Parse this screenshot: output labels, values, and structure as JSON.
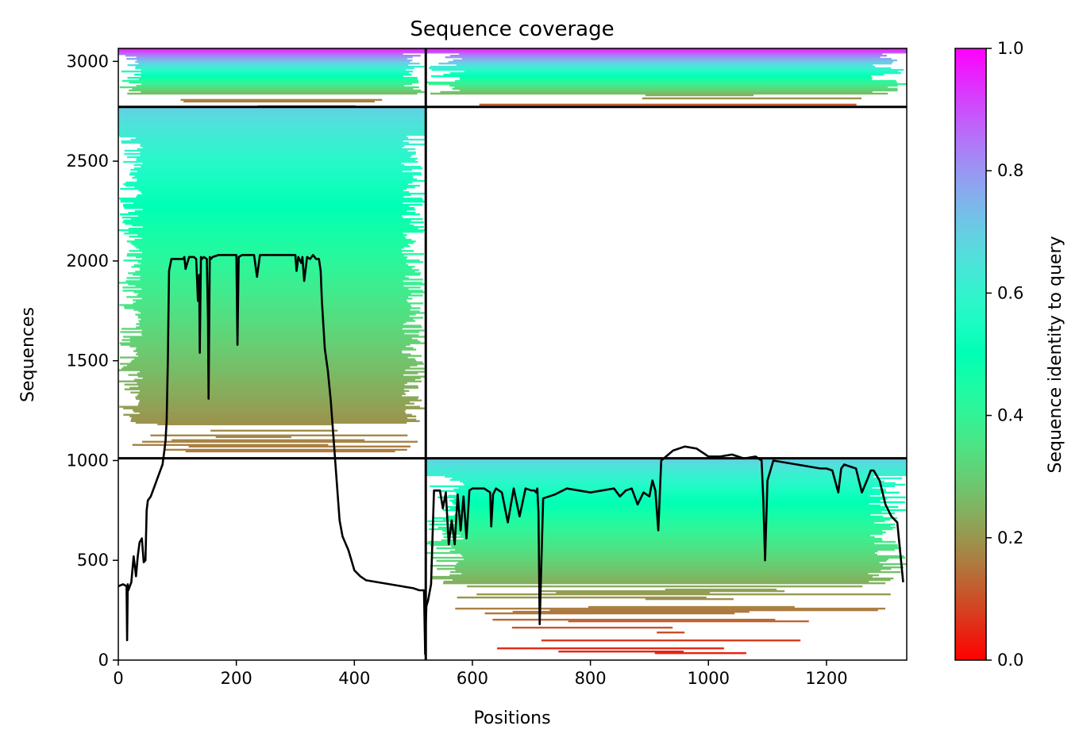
{
  "chart_data": {
    "type": "heatmap",
    "title": "Sequence coverage",
    "xlabel": "Positions",
    "ylabel": "Sequences",
    "xlim": [
      0,
      1336
    ],
    "ylim": [
      0,
      3065
    ],
    "x_ticks": [
      0,
      200,
      400,
      600,
      800,
      1000,
      1200
    ],
    "y_ticks": [
      0,
      500,
      1000,
      1500,
      2000,
      2500,
      3000
    ],
    "colorbar": {
      "label": "Sequence identity to query",
      "colormap": "rainbow_r",
      "range": [
        0,
        1
      ],
      "ticks": [
        0.0,
        0.2,
        0.4,
        0.6,
        0.8,
        1.0
      ],
      "tick_labels": [
        "0.0",
        "0.2",
        "0.4",
        "0.6",
        "0.8",
        "1.0"
      ]
    },
    "chain_boundary_x": 521,
    "block_boundaries_y": [
      1011,
      2772
    ],
    "blocks": [
      {
        "x": [
          0,
          521
        ],
        "y": [
          2772,
          3065
        ],
        "identity_top": 0.98,
        "identity_bottom": 0.08,
        "dense_fraction": 0.78
      },
      {
        "x": [
          521,
          1336
        ],
        "y": [
          2772,
          3065
        ],
        "identity_top": 0.98,
        "identity_bottom": 0.08,
        "dense_fraction": 0.78
      },
      {
        "x": [
          0,
          521
        ],
        "y": [
          1011,
          2772
        ],
        "identity_top": 0.7,
        "identity_bottom": 0.15,
        "dense_fraction": 0.9
      },
      {
        "x": [
          521,
          1336
        ],
        "y": [
          0,
          1011
        ],
        "identity_top": 0.7,
        "identity_bottom": 0.02,
        "dense_fraction": 0.62
      }
    ],
    "coverage_line": {
      "x": [
        0,
        8,
        14,
        15,
        16,
        17,
        22,
        26,
        30,
        33,
        36,
        40,
        43,
        46,
        48,
        50,
        55,
        60,
        65,
        70,
        75,
        78,
        80,
        82,
        84,
        86,
        90,
        100,
        110,
        112,
        114,
        120,
        128,
        132,
        135,
        137,
        138,
        140,
        142,
        145,
        150,
        152,
        153,
        155,
        157,
        160,
        170,
        180,
        190,
        200,
        202,
        204,
        210,
        220,
        230,
        235,
        240,
        250,
        260,
        270,
        280,
        290,
        300,
        302,
        305,
        310,
        312,
        315,
        320,
        325,
        330,
        335,
        340,
        343,
        345,
        350,
        355,
        360,
        365,
        370,
        375,
        380,
        390,
        400,
        410,
        420,
        440,
        460,
        480,
        500,
        510,
        518,
        520,
        521,
        522,
        525,
        530,
        535,
        540,
        545,
        550,
        555,
        560,
        565,
        570,
        575,
        580,
        585,
        590,
        595,
        600,
        610,
        620,
        630,
        632,
        635,
        640,
        650,
        660,
        670,
        680,
        690,
        700,
        705,
        708,
        710,
        712,
        714,
        720,
        740,
        760,
        780,
        800,
        820,
        840,
        850,
        860,
        870,
        880,
        890,
        900,
        905,
        910,
        915,
        920,
        940,
        960,
        980,
        1000,
        1020,
        1040,
        1060,
        1080,
        1085,
        1090,
        1093,
        1096,
        1100,
        1110,
        1130,
        1150,
        1170,
        1190,
        1200,
        1210,
        1220,
        1225,
        1230,
        1240,
        1250,
        1260,
        1270,
        1275,
        1280,
        1290,
        1300,
        1310,
        1320,
        1330,
        1334,
        1336
      ],
      "y": [
        370,
        380,
        370,
        100,
        380,
        350,
        390,
        520,
        420,
        520,
        590,
        610,
        490,
        500,
        750,
        800,
        820,
        860,
        900,
        940,
        980,
        1050,
        1100,
        1200,
        1500,
        1950,
        2010,
        2010,
        2010,
        2020,
        1960,
        2020,
        2020,
        2010,
        1800,
        1930,
        1540,
        2020,
        2010,
        2020,
        2010,
        1700,
        1310,
        2020,
        2010,
        2020,
        2030,
        2030,
        2030,
        2030,
        1580,
        2020,
        2030,
        2030,
        2030,
        1920,
        2030,
        2030,
        2030,
        2030,
        2030,
        2030,
        2030,
        1950,
        2020,
        1990,
        2020,
        1900,
        2020,
        2010,
        2030,
        2010,
        2010,
        1950,
        1800,
        1560,
        1450,
        1300,
        1100,
        900,
        700,
        620,
        550,
        450,
        420,
        400,
        390,
        380,
        370,
        360,
        350,
        350,
        30,
        180,
        270,
        300,
        380,
        850,
        850,
        850,
        760,
        840,
        580,
        700,
        580,
        830,
        650,
        820,
        610,
        850,
        860,
        860,
        860,
        840,
        670,
        830,
        860,
        840,
        690,
        860,
        720,
        860,
        850,
        850,
        840,
        860,
        740,
        180,
        810,
        830,
        860,
        850,
        840,
        850,
        860,
        820,
        850,
        860,
        780,
        840,
        820,
        900,
        850,
        650,
        1000,
        1050,
        1070,
        1060,
        1020,
        1020,
        1030,
        1010,
        1020,
        1010,
        1000,
        800,
        500,
        900,
        1000,
        990,
        980,
        970,
        960,
        960,
        950,
        840,
        960,
        980,
        970,
        960,
        840,
        910,
        950,
        950,
        900,
        780,
        720,
        690,
        390
      ]
    }
  }
}
